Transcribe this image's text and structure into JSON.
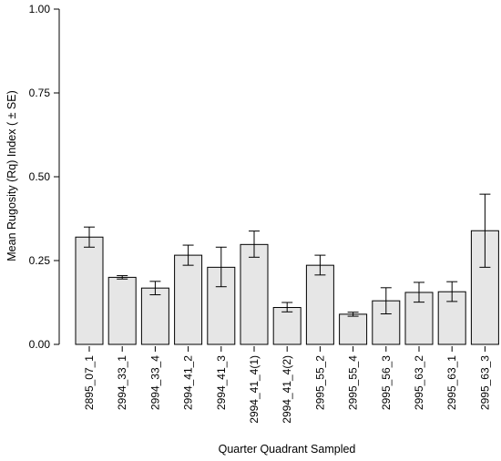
{
  "chart_data": {
    "type": "bar",
    "title": "",
    "xlabel": "Quarter Quadrant Sampled",
    "ylabel": "Mean Rugosity (Rq) Index ( ± SE)",
    "ylim": [
      0,
      1.0
    ],
    "y_ticks": [
      "0.00",
      "0.25",
      "0.50",
      "0.75",
      "1.00"
    ],
    "y_tick_values": [
      0,
      0.25,
      0.5,
      0.75,
      1.0
    ],
    "grid": false,
    "legend": "none",
    "bar_color": "#e6e6e6",
    "categories": [
      "2895_07_1",
      "2994_33_1",
      "2994_33_4",
      "2994_41_2",
      "2994_41_3",
      "2994_41_4(1)",
      "2994_41_4(2)",
      "2995_55_2",
      "2995_55_4",
      "2995_56_3",
      "2995_63_2",
      "2995_63_1",
      "2995_63_3"
    ],
    "values": [
      0.32,
      0.2,
      0.168,
      0.266,
      0.23,
      0.298,
      0.11,
      0.236,
      0.09,
      0.13,
      0.155,
      0.157,
      0.339
    ],
    "error_low": [
      0.29,
      0.195,
      0.148,
      0.236,
      0.172,
      0.26,
      0.097,
      0.207,
      0.084,
      0.091,
      0.126,
      0.128,
      0.23
    ],
    "error_high": [
      0.35,
      0.205,
      0.188,
      0.296,
      0.29,
      0.338,
      0.125,
      0.266,
      0.096,
      0.169,
      0.185,
      0.187,
      0.448
    ]
  }
}
